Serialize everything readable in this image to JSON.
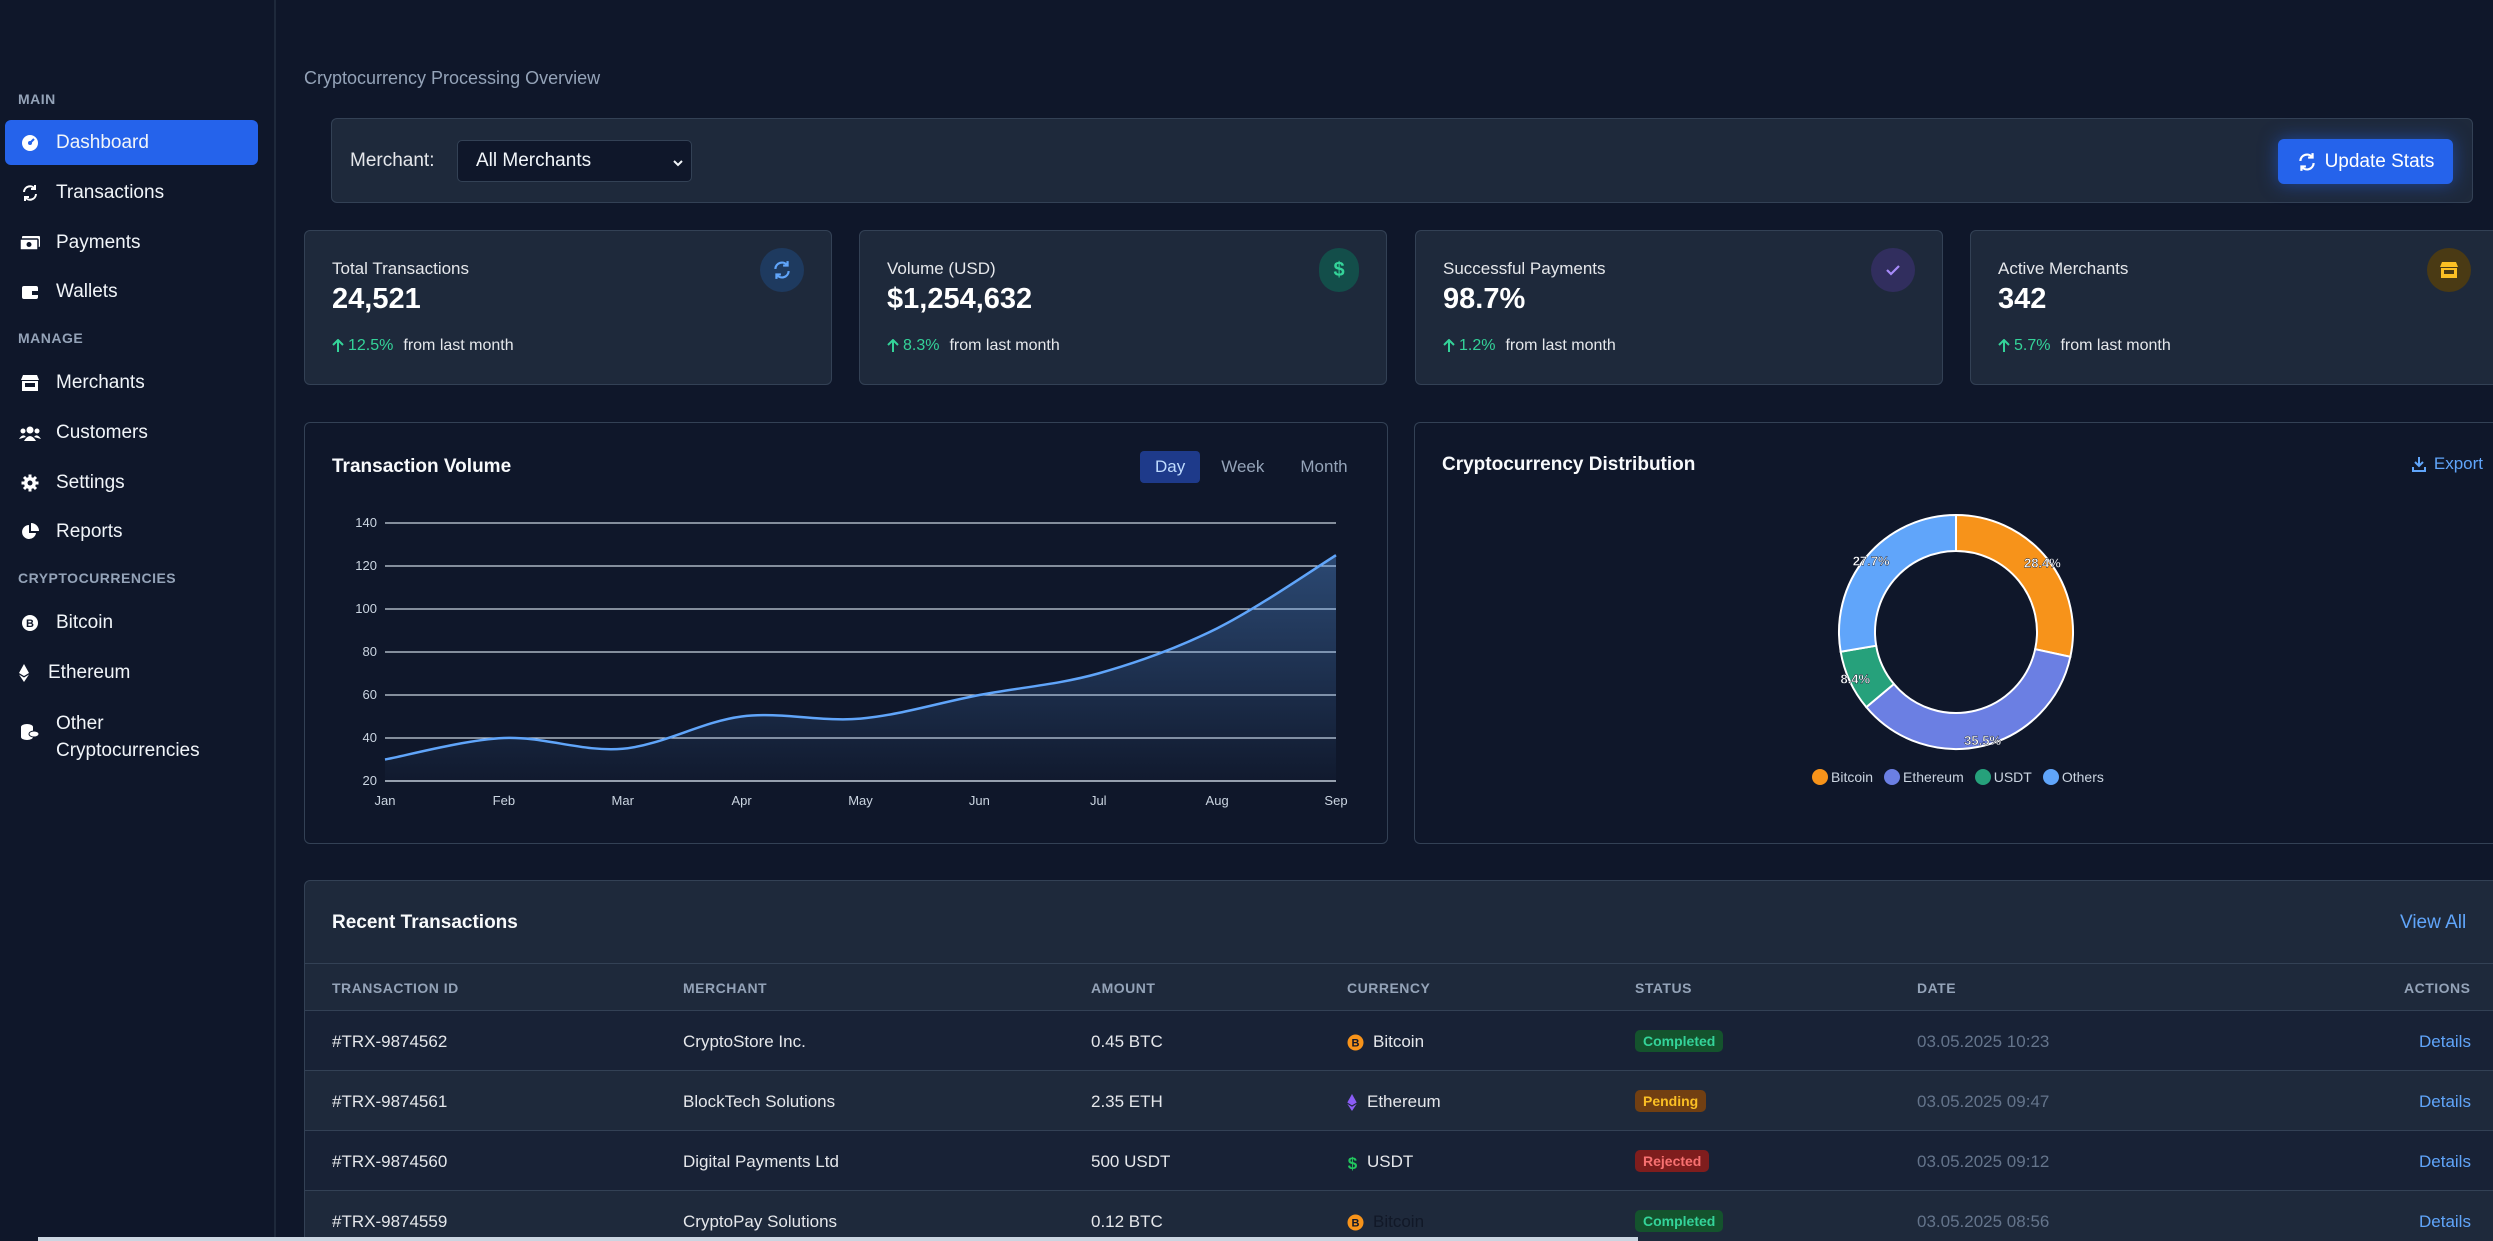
{
  "sidebar": {
    "sections": [
      {
        "label": "MAIN"
      },
      {
        "label": "MANAGE"
      },
      {
        "label": "CRYPTOCURRENCIES"
      }
    ],
    "items": [
      {
        "label": "Dashboard",
        "icon": "gauge-icon"
      },
      {
        "label": "Transactions",
        "icon": "sync-icon"
      },
      {
        "label": "Payments",
        "icon": "money-icon"
      },
      {
        "label": "Wallets",
        "icon": "wallet-icon"
      },
      {
        "label": "Merchants",
        "icon": "store-icon"
      },
      {
        "label": "Customers",
        "icon": "users-icon"
      },
      {
        "label": "Settings",
        "icon": "gear-icon"
      },
      {
        "label": "Reports",
        "icon": "pie-icon"
      },
      {
        "label": "Bitcoin",
        "icon": "bitcoin-icon"
      },
      {
        "label": "Ethereum",
        "icon": "ethereum-icon"
      },
      {
        "label": "Other Cryptocurrencies",
        "icon": "coins-icon"
      }
    ]
  },
  "header": {
    "title": "Cryptocurrency Processing Overview"
  },
  "filter": {
    "merchant_label": "Merchant:",
    "merchant_value": "All Merchants",
    "update_label": "Update Stats"
  },
  "stats": [
    {
      "title": "Total Transactions",
      "value": "24,521",
      "change": "12.5%",
      "suffix": "from last month",
      "icon": "refresh-icon",
      "color": "#60a5fa"
    },
    {
      "title": "Volume (USD)",
      "value": "$1,254,632",
      "change": "8.3%",
      "suffix": "from last month",
      "icon": "dollar-icon",
      "color": "#34d399"
    },
    {
      "title": "Successful Payments",
      "value": "98.7%",
      "change": "1.2%",
      "suffix": "from last month",
      "icon": "check-icon",
      "color": "#a78bfa"
    },
    {
      "title": "Active Merchants",
      "value": "342",
      "change": "5.7%",
      "suffix": "from last month",
      "icon": "store-icon",
      "color": "#fbbf24"
    }
  ],
  "volume_panel": {
    "title": "Transaction Volume",
    "tabs": [
      "Day",
      "Week",
      "Month"
    ],
    "active_tab": "Day"
  },
  "distribution_panel": {
    "title": "Cryptocurrency Distribution",
    "export_label": "Export"
  },
  "chart_data": [
    {
      "type": "area",
      "categories": [
        "Jan",
        "Feb",
        "Mar",
        "Apr",
        "May",
        "Jun",
        "Jul",
        "Aug",
        "Sep"
      ],
      "values": [
        30,
        40,
        35,
        50,
        49,
        60,
        70,
        91,
        125
      ],
      "yticks": [
        20,
        40,
        60,
        80,
        100,
        120,
        140
      ],
      "ylim": [
        20,
        140
      ],
      "grid": true,
      "color": "#60a5fa"
    },
    {
      "type": "pie",
      "donut": true,
      "labels": [
        "Bitcoin",
        "Ethereum",
        "USDT",
        "Others"
      ],
      "values": [
        28.4,
        35.5,
        8.4,
        27.7
      ],
      "value_labels": [
        "28.4%",
        "35.5%",
        "8.4%",
        "27.7%"
      ],
      "colors": [
        "#f7931a",
        "#6b7fe3",
        "#26a17b",
        "#60a5fa"
      ],
      "legend": "bottom"
    }
  ],
  "transactions": {
    "title": "Recent Transactions",
    "view_all": "View All",
    "columns": [
      "TRANSACTION ID",
      "MERCHANT",
      "AMOUNT",
      "CURRENCY",
      "STATUS",
      "DATE",
      "ACTIONS"
    ],
    "rows": [
      {
        "id": "#TRX-9874562",
        "merchant": "CryptoStore Inc.",
        "amount": "0.45 BTC",
        "currency": "Bitcoin",
        "currency_icon": "bitcoin-icon",
        "status": "Completed",
        "status_kind": "completed",
        "date": "03.05.2025 10:23",
        "action": "Details"
      },
      {
        "id": "#TRX-9874561",
        "merchant": "BlockTech Solutions",
        "amount": "2.35 ETH",
        "currency": "Ethereum",
        "currency_icon": "ethereum-icon",
        "status": "Pending",
        "status_kind": "pending",
        "date": "03.05.2025 09:47",
        "action": "Details"
      },
      {
        "id": "#TRX-9874560",
        "merchant": "Digital Payments Ltd",
        "amount": "500 USDT",
        "currency": "USDT",
        "currency_icon": "dollar-icon",
        "status": "Rejected",
        "status_kind": "rejected",
        "date": "03.05.2025 09:12",
        "action": "Details"
      },
      {
        "id": "#TRX-9874559",
        "merchant": "CryptoPay Solutions",
        "amount": "0.12 BTC",
        "currency": "Bitcoin",
        "currency_icon": "bitcoin-icon",
        "status": "Completed",
        "status_kind": "completed",
        "date": "03.05.2025 08:56",
        "action": "Details"
      }
    ]
  }
}
